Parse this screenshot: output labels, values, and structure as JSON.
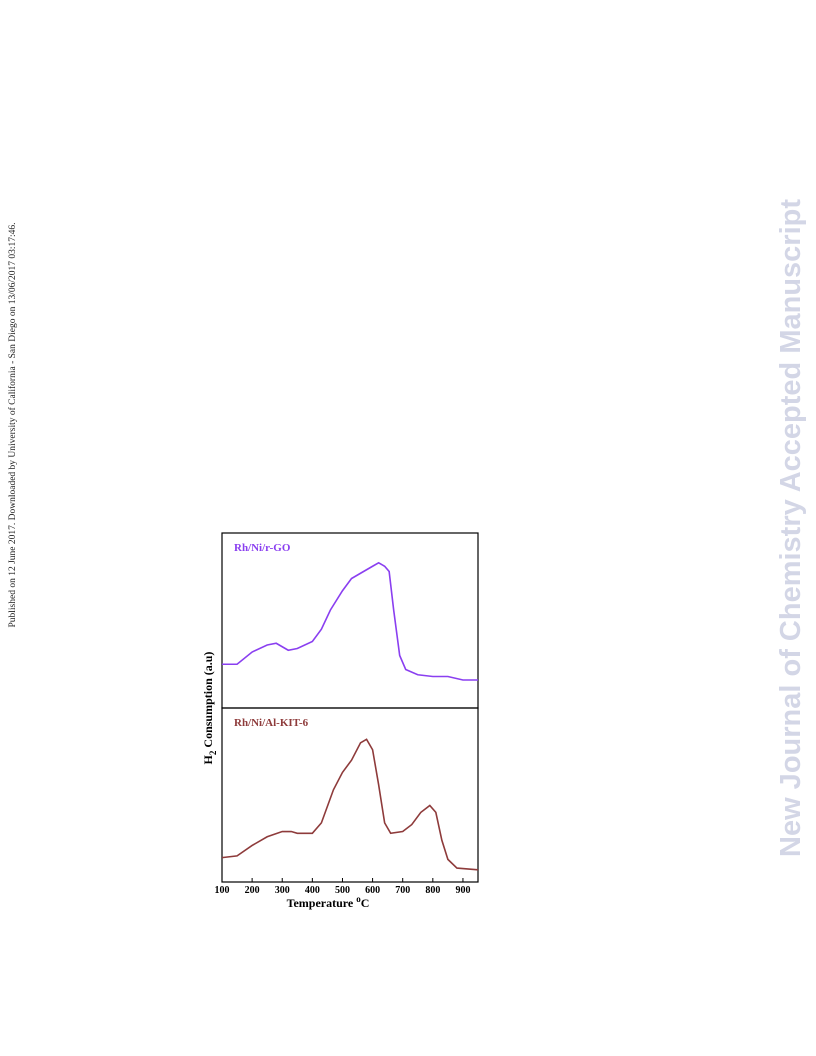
{
  "side_note": "Published on 12 June 2017. Downloaded by University of California - San Diego on 13/06/2017 03:17:46.",
  "watermark": "New Journal of Chemistry Accepted Manuscript",
  "chart_data": [
    {
      "type": "line",
      "annotation": "Rh/Ni/r-GO",
      "ylabel_main": "H",
      "ylabel_sub": "2",
      "ylabel_rest": " Consumption (a.u)",
      "xlim": [
        100,
        950
      ],
      "ylim": [
        0,
        100
      ],
      "x": [
        100,
        150,
        200,
        250,
        280,
        300,
        320,
        350,
        400,
        430,
        460,
        500,
        530,
        560,
        600,
        620,
        640,
        655,
        670,
        690,
        710,
        750,
        800,
        850,
        900,
        950
      ],
      "series": [
        {
          "name": "Rh/Ni/r-GO",
          "color": "#8a3ff0",
          "values": [
            25,
            25,
            32,
            36,
            37,
            35,
            33,
            34,
            38,
            45,
            56,
            67,
            74,
            77,
            81,
            83,
            81,
            78,
            56,
            30,
            22,
            19,
            18,
            18,
            16,
            16
          ]
        }
      ]
    },
    {
      "type": "line",
      "annotation": "Rh/Ni/Al-KIT-6",
      "xlabel_main": "Temperature ",
      "xlabel_sup": "o",
      "xlabel_rest": "C",
      "xlim": [
        100,
        950
      ],
      "ylim": [
        0,
        100
      ],
      "xticks": [
        100,
        200,
        300,
        400,
        500,
        600,
        700,
        800,
        900
      ],
      "x": [
        100,
        150,
        200,
        250,
        300,
        330,
        350,
        400,
        430,
        470,
        500,
        530,
        560,
        580,
        600,
        620,
        640,
        660,
        700,
        730,
        760,
        790,
        810,
        830,
        850,
        880,
        950
      ],
      "series": [
        {
          "name": "Rh/Ni/Al-KIT-6",
          "color": "#8e3b3b",
          "values": [
            14,
            15,
            21,
            26,
            29,
            29,
            28,
            28,
            34,
            53,
            63,
            70,
            80,
            82,
            76,
            56,
            34,
            28,
            29,
            33,
            40,
            44,
            40,
            24,
            13,
            8,
            7
          ]
        }
      ]
    }
  ]
}
